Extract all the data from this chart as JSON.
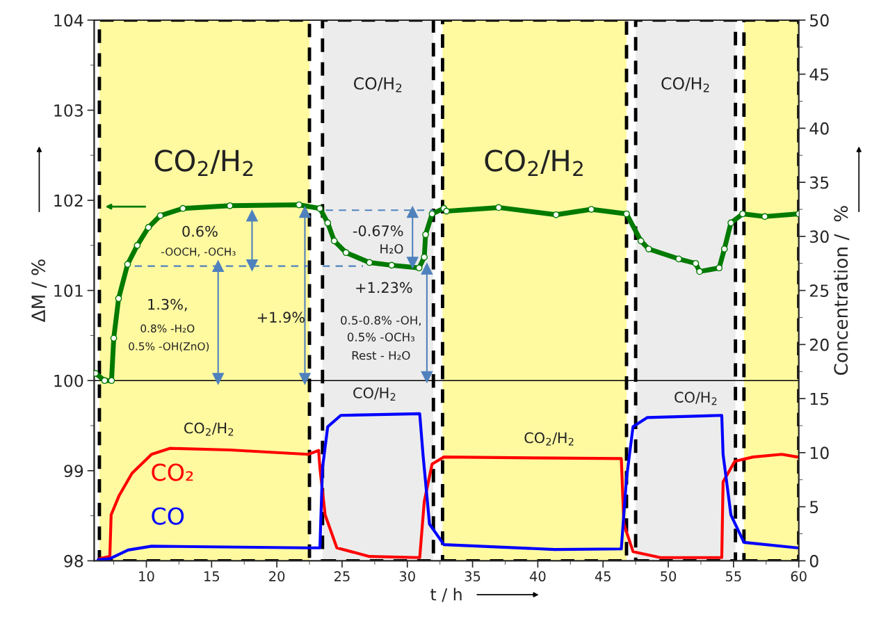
{
  "chart_data": {
    "type": "line",
    "xlabel": "t / h",
    "ylabel": "ΔM / %",
    "y2label": "Concentration /  %",
    "xlim": [
      6,
      60
    ],
    "xticks": [
      10,
      15,
      20,
      25,
      30,
      35,
      40,
      45,
      50,
      55,
      60
    ],
    "ylim": [
      98,
      104
    ],
    "yticks": [
      98,
      99,
      100,
      101,
      102,
      103,
      104
    ],
    "y2lim": [
      0,
      50
    ],
    "y2ticks": [
      0,
      5,
      10,
      15,
      20,
      25,
      30,
      35,
      40,
      45,
      50
    ],
    "grid": false,
    "series": [
      {
        "color": "#007a00",
        "marker": "circle",
        "x": [
          6.1,
          6.8,
          7.33,
          7.5,
          7.87,
          8.56,
          9.3,
          10.16,
          11.07,
          12.8,
          16.4,
          21.7,
          23.3,
          23.9,
          24.4,
          25.3,
          27.1,
          28.8,
          30.9,
          31.3,
          31.4,
          31.9,
          32.8,
          33.0,
          37.0,
          41.4,
          44.1,
          46.8,
          47.9,
          48.5,
          50.8,
          52.1,
          52.4,
          53.9,
          54.3,
          54.8,
          55.7,
          57.4,
          60
        ],
        "values": [
          100.08,
          100.0,
          100.0,
          100.47,
          100.91,
          101.29,
          101.5,
          101.7,
          101.83,
          101.91,
          101.94,
          101.95,
          101.91,
          101.75,
          101.55,
          101.42,
          101.31,
          101.28,
          101.25,
          101.37,
          101.62,
          101.85,
          101.91,
          101.88,
          101.92,
          101.84,
          101.9,
          101.85,
          101.55,
          101.46,
          101.35,
          101.3,
          101.21,
          101.25,
          101.46,
          101.75,
          101.85,
          101.82,
          101.85
        ]
      },
      {
        "name": "CO₂",
        "color": "#ff0000",
        "axis": "y2",
        "marker": "none",
        "x": [
          6.4,
          7.2,
          7.3,
          7.9,
          8.9,
          10.4,
          11.8,
          16.4,
          22.4,
          23.2,
          23.3,
          23.7,
          24.6,
          27.1,
          30.95,
          31.3,
          31.9,
          32.8,
          41.3,
          46.4,
          46.6,
          47.3,
          49.4,
          54.1,
          54.2,
          55.1,
          56.5,
          58.7,
          59.9
        ],
        "values": [
          0.2,
          0.4,
          4.25,
          6.0,
          8.1,
          9.85,
          10.4,
          10.25,
          9.85,
          10.2,
          8.6,
          4.25,
          1.2,
          0.4,
          0.3,
          5.5,
          8.95,
          9.6,
          9.5,
          9.45,
          3.4,
          0.85,
          0.3,
          0.3,
          7.3,
          9.2,
          9.6,
          9.85,
          9.6
        ]
      },
      {
        "name": "CO",
        "color": "#0000ff",
        "axis": "y2",
        "marker": "none",
        "x": [
          6.3,
          7.2,
          8.6,
          10.4,
          22.4,
          23.3,
          23.5,
          23.9,
          24.9,
          30.95,
          31.2,
          31.7,
          32.8,
          41.3,
          46.4,
          46.8,
          47.3,
          48.4,
          54.1,
          54.2,
          54.8,
          55.8,
          59.9
        ],
        "values": [
          0.1,
          0.2,
          1.0,
          1.35,
          1.2,
          1.2,
          8.6,
          12.4,
          13.45,
          13.6,
          9.85,
          3.4,
          1.5,
          1.05,
          1.1,
          7.65,
          12.4,
          13.25,
          13.45,
          9.85,
          4.25,
          1.7,
          1.2
        ]
      },
      {
        "color": "#4f81bd",
        "line_style": "dashed",
        "marker": "none",
        "x": [
          9.1,
          22.4
        ],
        "values": [
          101.27,
          101.27
        ]
      },
      {
        "color": "#4f81bd",
        "line_style": "dashed",
        "marker": "none",
        "x": [
          23.5,
          26.6
        ],
        "values": [
          101.27,
          101.27
        ]
      },
      {
        "color": "#4f81bd",
        "line_style": "dashed",
        "marker": "none",
        "x": [
          23.75,
          32.0
        ],
        "values": [
          101.89,
          101.89
        ]
      },
      {
        "color": "#4f81bd",
        "marker": "triangle",
        "x": [
          18.1,
          18.1
        ],
        "values": [
          101.83,
          101.28
        ]
      },
      {
        "color": "#4f81bd",
        "marker": "triangle",
        "x": [
          15.5,
          15.5
        ],
        "values": [
          101.27,
          100.02
        ]
      },
      {
        "color": "#4f81bd",
        "marker": "triangle",
        "x": [
          22.15,
          22.15
        ],
        "values": [
          101.87,
          100.02
        ]
      },
      {
        "color": "#4f81bd",
        "marker": "triangle",
        "x": [
          30.4,
          30.4
        ],
        "values": [
          101.87,
          101.31
        ]
      },
      {
        "color": "#4f81bd",
        "marker": "triangle",
        "x": [
          31.5,
          31.5
        ],
        "values": [
          101.24,
          100.04
        ]
      }
    ],
    "ref_lines": [
      {
        "axis": "y",
        "value": 100,
        "color": "#000000",
        "line_style": "solid"
      }
    ],
    "bands": [
      {
        "axis": "x",
        "from": 6.4,
        "to": 22.5,
        "color": "#fff9a0",
        "label": "CO$_{2}$/H$_{2}$"
      },
      {
        "axis": "x",
        "from": 23.5,
        "to": 32.0,
        "color": "#ececec",
        "label": "CO/H$_{2}$"
      },
      {
        "axis": "x",
        "from": 32.7,
        "to": 46.8,
        "color": "#fff9a0",
        "label": "CO$_{2}$/H$_{2}$"
      },
      {
        "axis": "x",
        "from": 47.5,
        "to": 55.15,
        "color": "#ececec",
        "label": "CO/H$_{2}$"
      },
      {
        "axis": "x",
        "from": 55.8,
        "to": 60,
        "color": "#fff9a0"
      }
    ],
    "annotations": [
      "CO/H$_{2}$",
      "CO/H$_{2}$",
      "CO$_{2}$/H$_{2}$",
      "CO$_{2}$/H$_{2}$",
      "0.6%",
      "-OOCH, -OCH₃",
      "1.3%,",
      "0.8% -H₂O",
      "0.5% -OH(ZnO)",
      "+1.9%",
      "-0.67%",
      "H₂O",
      "+1.23%",
      "0.5-0.8% -OH,",
      "0.5% -OCH₃",
      "Rest - H₂O"
    ]
  }
}
